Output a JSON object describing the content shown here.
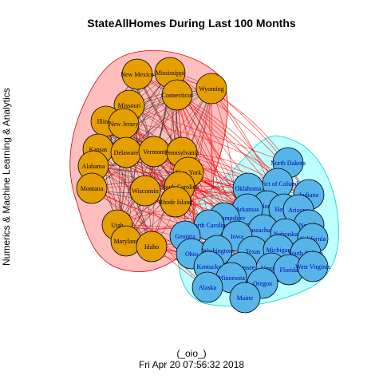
{
  "title": "StateAllHomes During Last 100 Months",
  "ylabel": "Numerics & Machine Learning & Analytics",
  "footer_line1": "(_oio_)",
  "footer_line2": "Fri Apr 20 07:56:32 2018",
  "colors": {
    "group1_fill": "#E69F00",
    "group1_hull": "#FFB3B3",
    "group1_hull_stroke": "#E00000",
    "group2_fill": "#56B4E9",
    "group2_hull": "#B3FFFF",
    "group2_hull_stroke": "#00D0D0",
    "intra_edge": "#000000",
    "inter_edge": "#FF0000",
    "label_group1": "#000000",
    "label_group2": "#0000AA"
  },
  "groups": [
    {
      "id": "orange",
      "nodes": [
        "New Mexico",
        "Mississippi",
        "Wyoming",
        "Missouri",
        "Connecticut",
        "Illinois",
        "New Jersey",
        "Kansas",
        "Delaware",
        "Vermont",
        "Pennsylvania",
        "Alabama",
        "Montana",
        "New York",
        "South Carolina",
        "Wisconsin",
        "Rhode Island",
        "Utah",
        "Maryland",
        "Idaho"
      ]
    },
    {
      "id": "blue",
      "nodes": [
        "North Dakota",
        "District of Columbia",
        "Oklahoma",
        "Colorado",
        "Indiana",
        "Arkansas",
        "Hawaii",
        "Arizona",
        "New Hampshire",
        "Nevada",
        "Massachusetts",
        "North Carolina",
        "Georgia",
        "Nebraska",
        "California",
        "Iowa",
        "Texas",
        "Michigan",
        "South Dakota",
        "Ohio",
        "Washington",
        "Kentucky",
        "Tennessee",
        "Virginia",
        "Florida",
        "West Virginia",
        "Minnesota",
        "Alaska",
        "Oregon",
        "Maine"
      ]
    }
  ]
}
